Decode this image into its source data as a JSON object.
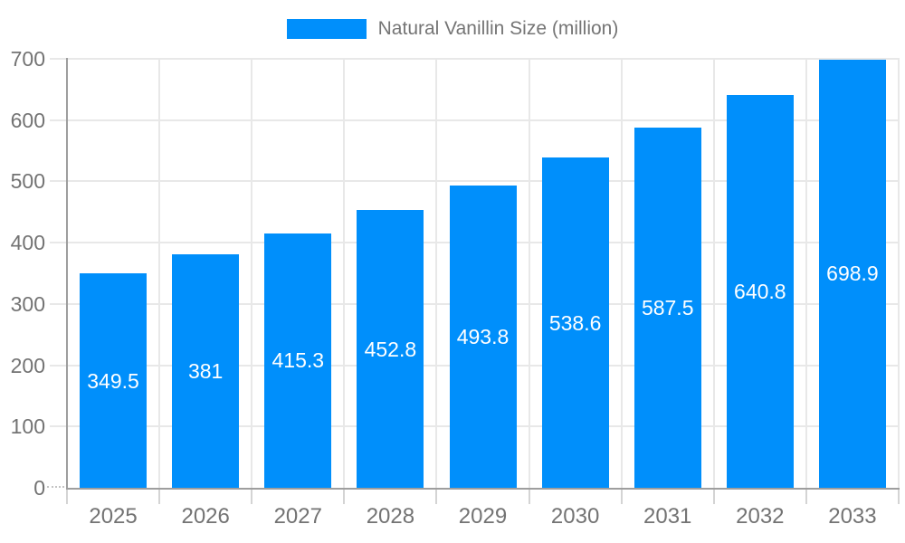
{
  "chart_data": {
    "type": "bar",
    "title": "",
    "xlabel": "",
    "ylabel": "",
    "categories": [
      "2025",
      "2026",
      "2027",
      "2028",
      "2029",
      "2030",
      "2031",
      "2032",
      "2033"
    ],
    "series": [
      {
        "name": "Natural Vanillin Size (million)",
        "values": [
          349.5,
          381,
          415.3,
          452.8,
          493.8,
          538.6,
          587.5,
          640.8,
          698.9
        ]
      }
    ],
    "data_labels": [
      "349.5",
      "381",
      "415.3",
      "452.8",
      "493.8",
      "538.6",
      "587.5",
      "640.8",
      "698.9"
    ],
    "ylim": [
      0,
      700
    ],
    "yticks": [
      0,
      100,
      200,
      300,
      400,
      500,
      600,
      700
    ],
    "grid": true,
    "legend_position": "top",
    "colors": {
      "bar": "#008FFB",
      "grid_line": "#e8e8e8",
      "axis_line": "#9e9e9e",
      "boundary_tick": "#d4d4d4",
      "zero_tick": "#c4c4c4",
      "tick_text": "#737373",
      "legend_text": "#757575",
      "data_label_text": "#ffffff",
      "background": "#ffffff"
    }
  }
}
